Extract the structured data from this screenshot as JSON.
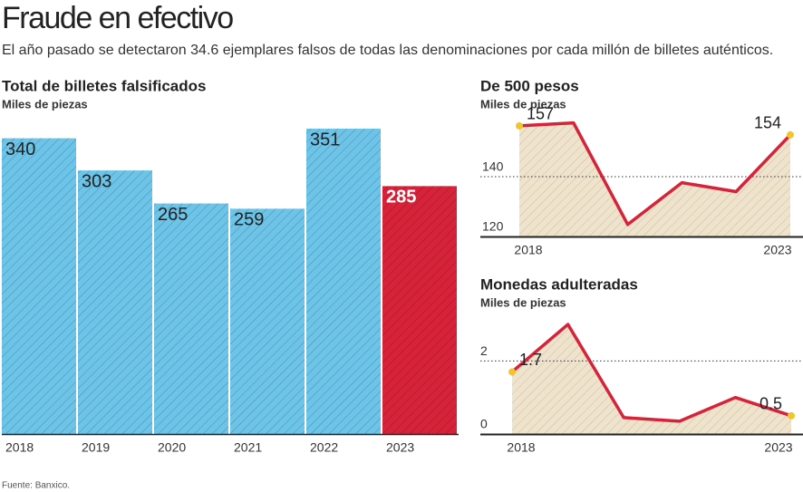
{
  "title": "Fraude en efectivo",
  "subtitle": "El año pasado se detectaron 34.6 ejemplares falsos de todas las denominaciones por cada millón de billetes auténticos.",
  "source": "Fuente: Banxico.",
  "chart_data": [
    {
      "type": "bar",
      "title": "Total de billetes falsificados",
      "subtitle": "Miles de piezas",
      "categories": [
        "2018",
        "2019",
        "2020",
        "2021",
        "2022",
        "2023"
      ],
      "values": [
        340,
        303,
        265,
        259,
        351,
        285
      ],
      "colors": [
        "#6cc4e8",
        "#6cc4e8",
        "#6cc4e8",
        "#6cc4e8",
        "#6cc4e8",
        "#d7233a"
      ],
      "ylim": [
        0,
        360
      ]
    },
    {
      "type": "line",
      "title": "De 500 pesos",
      "subtitle": "Miles de piezas",
      "categories": [
        "2018",
        null,
        null,
        null,
        null,
        "2023"
      ],
      "values": [
        157,
        158,
        124,
        138,
        135,
        154
      ],
      "color": "#d7233a",
      "fill": "#efe3cc",
      "ylim": [
        120,
        160
      ],
      "yticks": [
        120,
        140
      ]
    },
    {
      "type": "line",
      "title": "Monedas adulteradas",
      "subtitle": "Miles de piezas",
      "categories": [
        "2018",
        null,
        null,
        null,
        null,
        "2023"
      ],
      "values": [
        1.7,
        3.0,
        0.45,
        0.35,
        1.0,
        0.5
      ],
      "color": "#d7233a",
      "fill": "#efe3cc",
      "ylim": [
        0,
        3.2
      ],
      "yticks": [
        0,
        2
      ]
    }
  ]
}
